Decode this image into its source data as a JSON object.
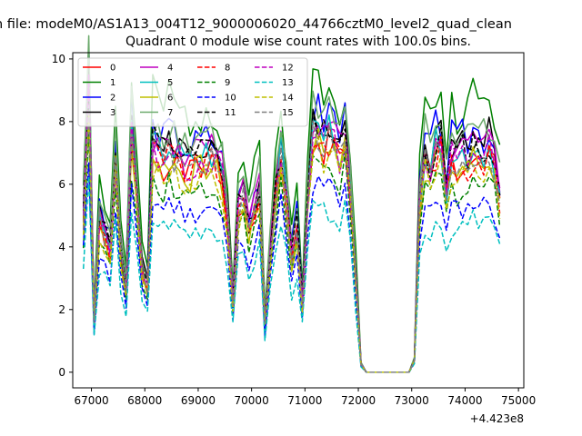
{
  "figure": {
    "suptitle": "n file: modeM0/AS1A13_004T12_9000006020_44766cztM0_level2_quad_clean"
  },
  "chart_data": {
    "type": "line",
    "title": "Quadrant 0 module wise count rates with 100.0s bins.",
    "xlabel": "",
    "ylabel": "",
    "x_offset_label": "+4.423e8",
    "xlim": [
      66650,
      75100
    ],
    "ylim": [
      -0.5,
      10.2
    ],
    "x_ticks": [
      67000,
      68000,
      69000,
      70000,
      71000,
      72000,
      73000,
      74000,
      75000
    ],
    "y_ticks": [
      0,
      2,
      4,
      6,
      8,
      10
    ],
    "grid": false,
    "legend": {
      "placement": "top-left",
      "columns": 4
    },
    "x": [
      66850,
      66950,
      67050,
      67150,
      67250,
      67350,
      67450,
      67550,
      67650,
      67750,
      67850,
      67950,
      68050,
      68150,
      68250,
      68350,
      68450,
      68550,
      68650,
      68750,
      68850,
      68950,
      69050,
      69150,
      69250,
      69350,
      69450,
      69550,
      69650,
      69750,
      69850,
      69950,
      70050,
      70150,
      70250,
      70350,
      70450,
      70550,
      70650,
      70750,
      70850,
      70950,
      71050,
      71150,
      71250,
      71350,
      71450,
      71550,
      71650,
      71750,
      71850,
      71950,
      72050,
      72150,
      72250,
      72350,
      72450,
      72550,
      72650,
      72750,
      72850,
      72950,
      73050,
      73150,
      73250,
      73350,
      73450,
      73550,
      73650,
      73750,
      73850,
      73950,
      74050,
      74150,
      74250,
      74350,
      74450,
      74550,
      74650
    ],
    "series": [
      {
        "name": "0",
        "color": "#ff0000",
        "dash": "solid",
        "profile": 6.3,
        "seed": 1
      },
      {
        "name": "1",
        "color": "#008000",
        "dash": "solid",
        "profile": 8.0,
        "seed": 2
      },
      {
        "name": "2",
        "color": "#0000ff",
        "dash": "solid",
        "profile": 7.1,
        "seed": 3
      },
      {
        "name": "3",
        "color": "#000000",
        "dash": "solid",
        "profile": 6.9,
        "seed": 4
      },
      {
        "name": "4",
        "color": "#bf00bf",
        "dash": "solid",
        "profile": 6.8,
        "seed": 5
      },
      {
        "name": "5",
        "color": "#00bfbf",
        "dash": "solid",
        "profile": 6.6,
        "seed": 6
      },
      {
        "name": "6",
        "color": "#bfbf00",
        "dash": "solid",
        "profile": 6.2,
        "seed": 7
      },
      {
        "name": "7",
        "color": "#6aa96a",
        "dash": "solid",
        "profile": 7.3,
        "seed": 8
      },
      {
        "name": "8",
        "color": "#ff0000",
        "dash": "dashed",
        "profile": 6.3,
        "seed": 9
      },
      {
        "name": "9",
        "color": "#008000",
        "dash": "dashed",
        "profile": 5.6,
        "seed": 10
      },
      {
        "name": "10",
        "color": "#0000ff",
        "dash": "dashed",
        "profile": 5.0,
        "seed": 11
      },
      {
        "name": "11",
        "color": "#000000",
        "dash": "dashed",
        "profile": 6.7,
        "seed": 12
      },
      {
        "name": "12",
        "color": "#bf00bf",
        "dash": "dashed",
        "profile": 6.5,
        "seed": 13
      },
      {
        "name": "13",
        "color": "#00bfbf",
        "dash": "dashed",
        "profile": 4.4,
        "seed": 14
      },
      {
        "name": "14",
        "color": "#bfbf00",
        "dash": "dashed",
        "profile": 6.0,
        "seed": 15
      },
      {
        "name": "15",
        "color": "#7f7f7f",
        "dash": "dashed",
        "profile": 6.4,
        "seed": 16
      }
    ],
    "shape": [
      0.76,
      1.38,
      0.26,
      0.76,
      0.68,
      0.6,
      1.05,
      0.6,
      0.42,
      1.18,
      0.84,
      0.5,
      0.42,
      1.1,
      1.08,
      1.05,
      1.1,
      1.06,
      1.04,
      1.02,
      1.0,
      1.03,
      1.04,
      1.06,
      1.05,
      1.02,
      0.96,
      0.76,
      0.34,
      0.8,
      0.86,
      0.7,
      0.8,
      0.9,
      0.24,
      0.6,
      0.86,
      1.08,
      0.86,
      0.56,
      0.72,
      0.34,
      0.86,
      1.18,
      1.18,
      1.14,
      1.18,
      1.16,
      1.06,
      1.16,
      0.9,
      0.48,
      0.04,
      0.0,
      0.0,
      0.0,
      0.0,
      0.0,
      0.0,
      0.0,
      0.0,
      0.0,
      0.06,
      0.84,
      1.06,
      1.0,
      1.1,
      1.12,
      0.88,
      1.06,
      1.02,
      1.06,
      1.04,
      1.1,
      1.08,
      1.06,
      1.1,
      1.02,
      0.86
    ]
  }
}
